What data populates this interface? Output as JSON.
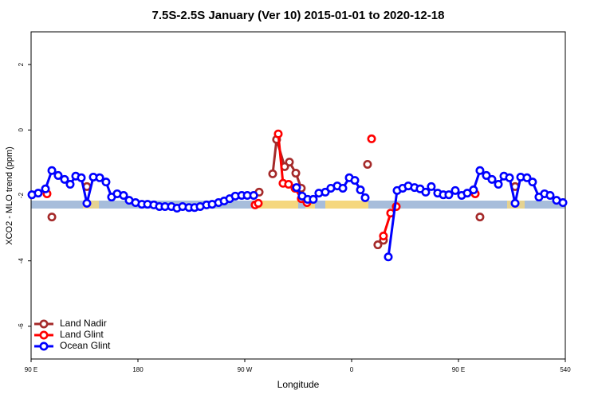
{
  "chart_data": {
    "type": "line",
    "title": "7.5S-2.5S January (Ver 10)   2015-01-01 to 2020-12-18",
    "x_label": "Longitude",
    "y_label": "XCO2 - MLO trend (ppm)",
    "xlim": [
      90,
      540
    ],
    "xticks": [
      {
        "value": 90,
        "label": "90 E"
      },
      180,
      {
        "value": 270,
        "label": "90 W"
      },
      {
        "value": 360,
        "label": "0"
      },
      {
        "value": 450,
        "label": "90 E"
      },
      540
    ],
    "ylim": [
      -7,
      3
    ],
    "yticks": [
      -6,
      -4,
      -2,
      0,
      2
    ],
    "legend": "bottom-left",
    "series": [
      {
        "name": "Land Nadir",
        "color": "#a52a2a",
        "x": [
          107.5,
          null,
          137.0,
          null,
          282.1,
          null,
          293.5,
          296.8,
          303.6,
          307.6,
          313.0,
          317.6,
          null,
          373.4,
          null,
          382.1,
          386.8,
          null,
          468.1,
          null,
          497.7
        ],
        "values": [
          -2.66,
          null,
          -1.73,
          null,
          -1.9,
          null,
          -1.34,
          -0.29,
          -1.12,
          -0.98,
          -1.32,
          -1.78,
          null,
          -1.05,
          null,
          -3.51,
          -3.37,
          null,
          -2.66,
          null,
          -1.73
        ]
      },
      {
        "name": "Land Glint",
        "color": "#ff0000",
        "x": [
          103.4,
          null,
          278.7,
          281.4,
          null,
          298.2,
          302.2,
          306.9,
          312.3,
          317.6,
          322.4,
          null,
          376.8,
          null,
          386.8,
          392.9,
          397.6,
          null,
          464.1
        ],
        "values": [
          -1.95,
          null,
          -2.29,
          -2.24,
          null,
          -0.12,
          -1.63,
          -1.66,
          -1.78,
          -2.1,
          -2.22,
          null,
          -0.27,
          null,
          -3.24,
          -2.54,
          -2.34,
          null,
          -1.95
        ]
      },
      {
        "name": "Ocean Glint",
        "color": "#0000ff",
        "x": [
          90.7,
          96.0,
          102.1,
          107.5,
          112.8,
          118.2,
          122.9,
          127.6,
          132.3,
          137.0,
          142.4,
          147.8,
          153.1,
          157.8,
          162.5,
          167.9,
          172.6,
          178.0,
          183.3,
          188.1,
          193.4,
          198.1,
          202.8,
          208.2,
          212.9,
          217.6,
          223.0,
          227.7,
          232.4,
          237.8,
          242.5,
          247.9,
          252.6,
          257.3,
          262.0,
          267.4,
          272.1,
          277.5,
          null,
          313.6,
          318.3,
          323.0,
          327.7,
          332.4,
          337.8,
          342.5,
          347.9,
          352.6,
          358.0,
          362.7,
          367.4,
          371.4,
          null,
          390.9,
          398.3,
          403.0,
          407.7,
          413.0,
          417.7,
          422.4,
          427.1,
          432.5,
          437.2,
          441.9,
          447.3,
          452.7,
          457.4,
          462.7,
          468.1,
          473.5,
          478.2,
          483.6,
          488.3,
          493.0,
          497.7,
          502.4,
          507.7,
          512.4,
          517.8,
          522.5,
          527.2,
          532.6,
          538.0
        ],
        "values": [
          -1.98,
          -1.93,
          -1.8,
          -1.24,
          -1.39,
          -1.51,
          -1.66,
          -1.41,
          -1.46,
          -2.24,
          -1.44,
          -1.46,
          -1.59,
          -2.05,
          -1.95,
          -2.0,
          -2.15,
          -2.22,
          -2.27,
          -2.27,
          -2.29,
          -2.34,
          -2.34,
          -2.34,
          -2.39,
          -2.34,
          -2.37,
          -2.37,
          -2.34,
          -2.29,
          -2.27,
          -2.22,
          -2.17,
          -2.1,
          -2.02,
          -2.0,
          -2.0,
          -2.0,
          null,
          -1.76,
          -2.02,
          -2.12,
          -2.12,
          -1.93,
          -1.9,
          -1.78,
          -1.71,
          -1.78,
          -1.46,
          -1.54,
          -1.83,
          -2.07,
          null,
          -3.88,
          -1.85,
          -1.78,
          -1.71,
          -1.76,
          -1.8,
          -1.9,
          -1.73,
          -1.93,
          -1.98,
          -1.98,
          -1.85,
          -2.0,
          -1.93,
          -1.83,
          -1.24,
          -1.39,
          -1.51,
          -1.66,
          -1.41,
          -1.46,
          -2.24,
          -1.44,
          -1.46,
          -1.59,
          -2.05,
          -1.95,
          -2.0,
          -2.15,
          -2.22
        ]
      }
    ]
  }
}
